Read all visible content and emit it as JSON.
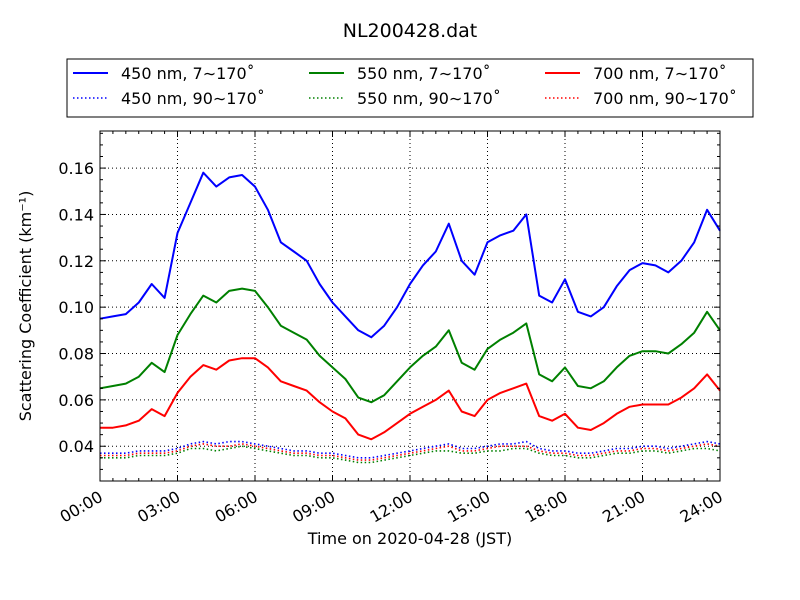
{
  "chart_data": {
    "type": "line",
    "title": "NL200428.dat",
    "xlabel": "Time on 2020-04-28 (JST)",
    "ylabel": "Scattering Coefficient (km⁻¹)",
    "xlim": [
      0,
      24
    ],
    "ylim": [
      0.025,
      0.176
    ],
    "x_ticks": [
      {
        "value": 0,
        "label": "00:00"
      },
      {
        "value": 3,
        "label": "03:00"
      },
      {
        "value": 6,
        "label": "06:00"
      },
      {
        "value": 9,
        "label": "09:00"
      },
      {
        "value": 12,
        "label": "12:00"
      },
      {
        "value": 15,
        "label": "15:00"
      },
      {
        "value": 18,
        "label": "18:00"
      },
      {
        "value": 21,
        "label": "21:00"
      },
      {
        "value": 24,
        "label": "24:00"
      }
    ],
    "y_ticks": [
      {
        "value": 0.04,
        "label": "0.04"
      },
      {
        "value": 0.06,
        "label": "0.06"
      },
      {
        "value": 0.08,
        "label": "0.08"
      },
      {
        "value": 0.1,
        "label": "0.10"
      },
      {
        "value": 0.12,
        "label": "0.12"
      },
      {
        "value": 0.14,
        "label": "0.14"
      },
      {
        "value": 0.16,
        "label": "0.16"
      }
    ],
    "grid": true,
    "legend_position": "top",
    "x": [
      0,
      0.5,
      1,
      1.5,
      2,
      2.5,
      3,
      3.5,
      4,
      4.5,
      5,
      5.5,
      6,
      6.5,
      7,
      7.5,
      8,
      8.5,
      9,
      9.5,
      10,
      10.5,
      11,
      11.5,
      12,
      12.5,
      13,
      13.5,
      14,
      14.5,
      15,
      15.5,
      16,
      16.5,
      17,
      17.5,
      18,
      18.5,
      19,
      19.5,
      20,
      20.5,
      21,
      21.5,
      22,
      22.5,
      23,
      23.5,
      24
    ],
    "series": [
      {
        "name": "450 nm, 7∼170˚",
        "color": "#0000ff",
        "style": "solid",
        "values": [
          0.095,
          0.096,
          0.097,
          0.102,
          0.11,
          0.104,
          0.132,
          0.145,
          0.158,
          0.152,
          0.156,
          0.157,
          0.152,
          0.142,
          0.128,
          0.124,
          0.12,
          0.11,
          0.102,
          0.096,
          0.09,
          0.087,
          0.092,
          0.1,
          0.11,
          0.118,
          0.124,
          0.136,
          0.12,
          0.114,
          0.128,
          0.131,
          0.133,
          0.14,
          0.105,
          0.102,
          0.112,
          0.098,
          0.096,
          0.1,
          0.109,
          0.116,
          0.119,
          0.118,
          0.115,
          0.12,
          0.128,
          0.142,
          0.133
        ]
      },
      {
        "name": "450 nm, 90∼170˚",
        "color": "#0000ff",
        "style": "dotted",
        "values": [
          0.037,
          0.037,
          0.037,
          0.038,
          0.038,
          0.038,
          0.039,
          0.041,
          0.042,
          0.041,
          0.042,
          0.042,
          0.041,
          0.04,
          0.039,
          0.038,
          0.038,
          0.037,
          0.037,
          0.036,
          0.035,
          0.035,
          0.036,
          0.037,
          0.038,
          0.039,
          0.04,
          0.041,
          0.039,
          0.039,
          0.04,
          0.041,
          0.041,
          0.042,
          0.039,
          0.038,
          0.038,
          0.037,
          0.037,
          0.038,
          0.039,
          0.039,
          0.04,
          0.04,
          0.039,
          0.04,
          0.041,
          0.042,
          0.041
        ]
      },
      {
        "name": "550 nm, 7∼170˚",
        "color": "#008000",
        "style": "solid",
        "values": [
          0.065,
          0.066,
          0.067,
          0.07,
          0.076,
          0.072,
          0.088,
          0.097,
          0.105,
          0.102,
          0.107,
          0.108,
          0.107,
          0.1,
          0.092,
          0.089,
          0.086,
          0.079,
          0.074,
          0.069,
          0.061,
          0.059,
          0.062,
          0.068,
          0.074,
          0.079,
          0.083,
          0.09,
          0.076,
          0.073,
          0.082,
          0.086,
          0.089,
          0.093,
          0.071,
          0.068,
          0.074,
          0.066,
          0.065,
          0.068,
          0.074,
          0.079,
          0.081,
          0.081,
          0.08,
          0.084,
          0.089,
          0.098,
          0.09
        ]
      },
      {
        "name": "550 nm, 90∼170˚",
        "color": "#008000",
        "style": "dotted",
        "values": [
          0.035,
          0.035,
          0.035,
          0.036,
          0.036,
          0.036,
          0.037,
          0.039,
          0.039,
          0.038,
          0.039,
          0.04,
          0.039,
          0.038,
          0.037,
          0.036,
          0.036,
          0.035,
          0.035,
          0.034,
          0.033,
          0.033,
          0.034,
          0.035,
          0.036,
          0.037,
          0.038,
          0.038,
          0.037,
          0.037,
          0.038,
          0.038,
          0.039,
          0.039,
          0.037,
          0.036,
          0.036,
          0.035,
          0.035,
          0.036,
          0.037,
          0.037,
          0.038,
          0.038,
          0.037,
          0.038,
          0.039,
          0.039,
          0.038
        ]
      },
      {
        "name": "700 nm, 7∼170˚",
        "color": "#ff0000",
        "style": "solid",
        "values": [
          0.048,
          0.048,
          0.049,
          0.051,
          0.056,
          0.053,
          0.063,
          0.07,
          0.075,
          0.073,
          0.077,
          0.078,
          0.078,
          0.074,
          0.068,
          0.066,
          0.064,
          0.059,
          0.055,
          0.052,
          0.045,
          0.043,
          0.046,
          0.05,
          0.054,
          0.057,
          0.06,
          0.064,
          0.055,
          0.053,
          0.06,
          0.063,
          0.065,
          0.067,
          0.053,
          0.051,
          0.054,
          0.048,
          0.047,
          0.05,
          0.054,
          0.057,
          0.058,
          0.058,
          0.058,
          0.061,
          0.065,
          0.071,
          0.064
        ]
      },
      {
        "name": "700 nm, 90∼170˚",
        "color": "#ff0000",
        "style": "dotted",
        "values": [
          0.036,
          0.036,
          0.036,
          0.037,
          0.037,
          0.037,
          0.038,
          0.04,
          0.041,
          0.04,
          0.04,
          0.041,
          0.04,
          0.039,
          0.038,
          0.037,
          0.037,
          0.036,
          0.036,
          0.035,
          0.034,
          0.034,
          0.035,
          0.036,
          0.037,
          0.038,
          0.039,
          0.04,
          0.038,
          0.038,
          0.039,
          0.04,
          0.04,
          0.04,
          0.038,
          0.037,
          0.037,
          0.036,
          0.036,
          0.037,
          0.038,
          0.038,
          0.039,
          0.039,
          0.038,
          0.039,
          0.04,
          0.041,
          0.04
        ]
      }
    ]
  }
}
